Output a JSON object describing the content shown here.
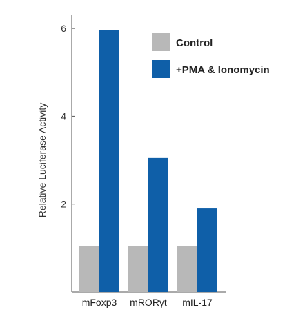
{
  "chart_data": {
    "type": "bar",
    "title": "",
    "xlabel": "",
    "ylabel": "Relative Luciferase Activity",
    "categories": [
      "mFoxp3",
      "mRORγt",
      "mIL-17"
    ],
    "series": [
      {
        "name": "Control",
        "values": [
          1.05,
          1.05,
          1.05
        ],
        "color": "#b8b8b8"
      },
      {
        "name": "+PMA & Ionomycin",
        "values": [
          5.97,
          3.05,
          1.9
        ],
        "color": "#0f5fa8"
      }
    ],
    "ylim": [
      0,
      6.3
    ],
    "yticks": [
      2,
      4,
      6
    ],
    "grid": false,
    "legend": "top-right"
  }
}
